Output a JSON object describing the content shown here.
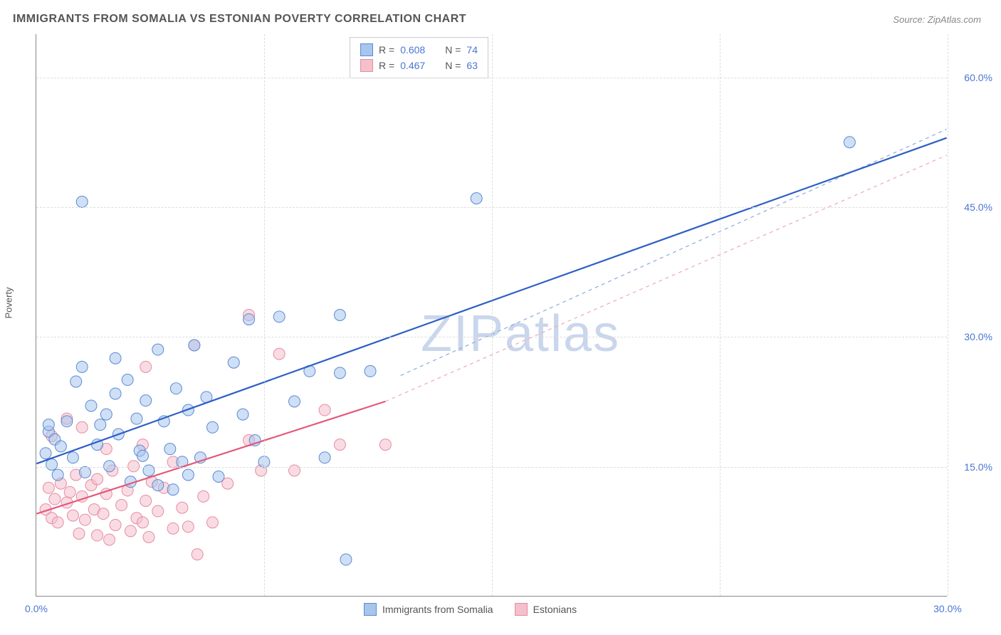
{
  "title": "IMMIGRANTS FROM SOMALIA VS ESTONIAN POVERTY CORRELATION CHART",
  "source_label": "Source:",
  "source_name": "ZipAtlas.com",
  "y_axis_label": "Poverty",
  "watermark_bold": "ZIP",
  "watermark_light": "atlas",
  "chart": {
    "type": "scatter",
    "background_color": "#ffffff",
    "grid_color": "#dddddd",
    "axis_color": "#888888",
    "tick_label_color": "#4a76d4",
    "tick_fontsize": 14,
    "title_fontsize": 16,
    "title_color": "#555555",
    "xlim": [
      0,
      30
    ],
    "ylim": [
      0,
      65
    ],
    "x_ticks": [
      0,
      15,
      30
    ],
    "x_tick_labels": [
      "0.0%",
      "",
      "30.0%"
    ],
    "y_ticks": [
      15,
      30,
      45,
      60
    ],
    "y_tick_labels": [
      "15.0%",
      "30.0%",
      "45.0%",
      "60.0%"
    ],
    "x_grid_positions": [
      7.5,
      15,
      22.5,
      30
    ],
    "y_grid_positions": [
      15,
      30,
      45,
      60
    ],
    "marker_radius": 8,
    "marker_opacity": 0.55,
    "series": [
      {
        "name": "Immigrants from Somalia",
        "fill_color": "#a8c5ec",
        "stroke_color": "#5a8ad4",
        "line_color": "#2d5fc4",
        "line_width": 2.2,
        "dash_color": "#8aa9de",
        "R": "0.608",
        "N": "74",
        "trend": {
          "x1": 0,
          "y1": 15.3,
          "x2": 30,
          "y2": 53
        },
        "dash_trend": {
          "x1": 12,
          "y1": 25.5,
          "x2": 30,
          "y2": 54
        },
        "points": [
          [
            0.3,
            16.5
          ],
          [
            0.4,
            19.0
          ],
          [
            0.5,
            15.2
          ],
          [
            0.6,
            18.1
          ],
          [
            0.7,
            14.0
          ],
          [
            0.8,
            17.3
          ],
          [
            0.4,
            19.8
          ],
          [
            1.0,
            20.2
          ],
          [
            1.2,
            16.0
          ],
          [
            1.3,
            24.8
          ],
          [
            1.5,
            26.5
          ],
          [
            1.6,
            14.3
          ],
          [
            1.8,
            22.0
          ],
          [
            1.5,
            45.6
          ],
          [
            2.0,
            17.5
          ],
          [
            2.1,
            19.8
          ],
          [
            2.3,
            21.0
          ],
          [
            2.4,
            15.0
          ],
          [
            2.6,
            23.4
          ],
          [
            2.7,
            18.7
          ],
          [
            2.6,
            27.5
          ],
          [
            3.0,
            25.0
          ],
          [
            3.1,
            13.2
          ],
          [
            3.3,
            20.5
          ],
          [
            3.4,
            16.8
          ],
          [
            3.6,
            22.6
          ],
          [
            3.7,
            14.5
          ],
          [
            4.0,
            28.5
          ],
          [
            4.2,
            20.2
          ],
          [
            4.4,
            17.0
          ],
          [
            4.6,
            24.0
          ],
          [
            4.8,
            15.5
          ],
          [
            4.5,
            12.3
          ],
          [
            5.0,
            21.5
          ],
          [
            5.2,
            29.0
          ],
          [
            5.4,
            16.0
          ],
          [
            5.6,
            23.0
          ],
          [
            5.8,
            19.5
          ],
          [
            6.0,
            13.8
          ],
          [
            6.5,
            27.0
          ],
          [
            6.8,
            21.0
          ],
          [
            7.0,
            32.0
          ],
          [
            7.2,
            18.0
          ],
          [
            8.0,
            32.3
          ],
          [
            5.0,
            14.0
          ],
          [
            4.0,
            12.8
          ],
          [
            3.5,
            16.2
          ],
          [
            9.0,
            26.0
          ],
          [
            9.5,
            16.0
          ],
          [
            10.0,
            25.8
          ],
          [
            10.0,
            32.5
          ],
          [
            10.2,
            4.2
          ],
          [
            11.0,
            26.0
          ],
          [
            14.5,
            46.0
          ],
          [
            26.8,
            52.5
          ],
          [
            7.5,
            15.5
          ],
          [
            8.5,
            22.5
          ]
        ]
      },
      {
        "name": "Estonians",
        "fill_color": "#f4c0cc",
        "stroke_color": "#e88aa0",
        "line_color": "#e35a7a",
        "line_width": 2.2,
        "dash_color": "#f0a8b8",
        "R": "0.467",
        "N": "63",
        "trend": {
          "x1": 0,
          "y1": 9.5,
          "x2": 11.5,
          "y2": 22.5
        },
        "dash_trend": {
          "x1": 11.5,
          "y1": 22.5,
          "x2": 30,
          "y2": 51
        },
        "points": [
          [
            0.3,
            10.0
          ],
          [
            0.4,
            12.5
          ],
          [
            0.5,
            9.0
          ],
          [
            0.6,
            11.2
          ],
          [
            0.7,
            8.5
          ],
          [
            0.8,
            13.0
          ],
          [
            1.0,
            10.8
          ],
          [
            1.1,
            12.0
          ],
          [
            1.2,
            9.3
          ],
          [
            1.3,
            14.0
          ],
          [
            1.4,
            7.2
          ],
          [
            1.5,
            11.5
          ],
          [
            1.5,
            19.5
          ],
          [
            1.6,
            8.8
          ],
          [
            1.8,
            12.8
          ],
          [
            1.9,
            10.0
          ],
          [
            2.0,
            7.0
          ],
          [
            1.0,
            20.5
          ],
          [
            0.5,
            18.5
          ],
          [
            2.0,
            13.5
          ],
          [
            2.2,
            9.5
          ],
          [
            2.3,
            11.8
          ],
          [
            2.4,
            6.5
          ],
          [
            2.5,
            14.5
          ],
          [
            2.6,
            8.2
          ],
          [
            2.3,
            17.0
          ],
          [
            2.8,
            10.5
          ],
          [
            3.0,
            12.2
          ],
          [
            3.1,
            7.5
          ],
          [
            3.2,
            15.0
          ],
          [
            3.3,
            9.0
          ],
          [
            3.5,
            8.5
          ],
          [
            3.6,
            11.0
          ],
          [
            3.7,
            6.8
          ],
          [
            3.8,
            13.2
          ],
          [
            3.5,
            17.5
          ],
          [
            3.6,
            26.5
          ],
          [
            4.0,
            9.8
          ],
          [
            4.2,
            12.5
          ],
          [
            4.5,
            7.8
          ],
          [
            4.8,
            10.2
          ],
          [
            4.5,
            15.5
          ],
          [
            5.0,
            8.0
          ],
          [
            5.3,
            4.8
          ],
          [
            5.5,
            11.5
          ],
          [
            5.8,
            8.5
          ],
          [
            5.2,
            29.0
          ],
          [
            6.3,
            13.0
          ],
          [
            7.0,
            18.0
          ],
          [
            7.4,
            14.5
          ],
          [
            7.0,
            32.5
          ],
          [
            8.5,
            14.5
          ],
          [
            8.0,
            28.0
          ],
          [
            9.5,
            21.5
          ],
          [
            10.0,
            17.5
          ],
          [
            11.5,
            17.5
          ]
        ]
      }
    ],
    "legend_box": {
      "border_color": "#cccccc",
      "fontsize": 14,
      "label_color": "#555555",
      "value_color": "#4a76d4",
      "R_prefix": "R =",
      "N_prefix": "N ="
    },
    "bottom_legend": {
      "fontsize": 14,
      "color": "#555555"
    }
  }
}
